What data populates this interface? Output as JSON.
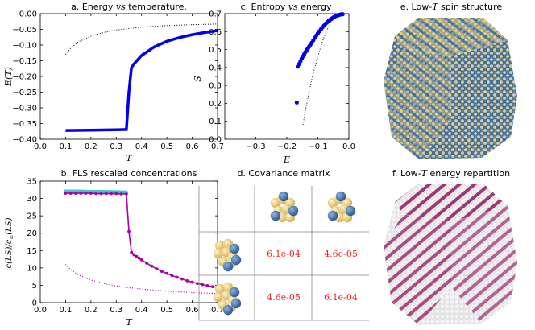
{
  "colors": {
    "energy_line": "#0000ee",
    "dotted": "#000000",
    "fls_main": "#aa00aa",
    "fls_cyan": "#33cccc",
    "cov_text": "#ee2222",
    "spin_blue": "#3f6fa8",
    "spin_yellow": "#e9cf7e",
    "repart_magenta": "#8b0a55",
    "repart_white": "#e4e4e4"
  },
  "chart_data": [
    {
      "id": "a",
      "type": "line",
      "title": "a. Energy vs temperature.",
      "title_parts": {
        "prefix": "a. Energy ",
        "vs": "vs",
        "suffix": " temperature."
      },
      "xlabel": "T",
      "ylabel": "E(T)",
      "xlim": [
        0.0,
        0.7
      ],
      "ylim": [
        -0.4,
        0.0
      ],
      "xticks": [
        "0.0",
        "0.1",
        "0.2",
        "0.3",
        "0.4",
        "0.5",
        "0.6",
        "0.7"
      ],
      "yticks": [
        "0.00",
        "−0.05",
        "−0.10",
        "−0.15",
        "−0.20",
        "−0.25",
        "−0.30",
        "−0.35",
        "−0.40"
      ],
      "grid": false,
      "series": [
        {
          "style": "solid-thick-blue",
          "x": [
            0.1,
            0.2,
            0.3,
            0.34,
            0.35,
            0.36,
            0.37,
            0.4,
            0.45,
            0.5,
            0.55,
            0.6,
            0.65,
            0.7
          ],
          "y": [
            -0.372,
            -0.371,
            -0.37,
            -0.369,
            -0.25,
            -0.172,
            -0.16,
            -0.133,
            -0.106,
            -0.088,
            -0.076,
            -0.067,
            -0.06,
            -0.054
          ]
        },
        {
          "style": "dotted-black",
          "x": [
            0.1,
            0.12,
            0.15,
            0.2,
            0.25,
            0.3,
            0.4,
            0.5,
            0.6,
            0.7
          ],
          "y": [
            -0.13,
            -0.11,
            -0.09,
            -0.072,
            -0.06,
            -0.052,
            -0.043,
            -0.038,
            -0.035,
            -0.033
          ]
        }
      ]
    },
    {
      "id": "c",
      "type": "scatter",
      "title": "c. Entropy vs energy",
      "title_parts": {
        "prefix": "c. Entropy ",
        "vs": "vs",
        "suffix": " energy"
      },
      "xlabel": "E",
      "ylabel": "S",
      "xlim": [
        -0.4,
        0.0
      ],
      "ylim": [
        0.0,
        0.7
      ],
      "xticks": [
        "−0.3",
        "−0.2",
        "−0.1",
        "0.0"
      ],
      "yticks": [
        "0.0",
        "0.1",
        "0.2",
        "0.3",
        "0.4",
        "0.5",
        "0.6",
        "0.7"
      ],
      "grid": false,
      "series": [
        {
          "style": "markers-blue",
          "x": [
            -0.168,
            -0.165,
            -0.16,
            -0.156,
            -0.152,
            -0.148,
            -0.144,
            -0.14,
            -0.136,
            -0.132,
            -0.128,
            -0.124,
            -0.12,
            -0.115,
            -0.11,
            -0.105,
            -0.1,
            -0.095,
            -0.09,
            -0.085,
            -0.08,
            -0.075,
            -0.07,
            -0.065,
            -0.06,
            -0.055,
            -0.05,
            -0.045,
            -0.04,
            -0.035,
            -0.03,
            -0.025,
            -0.02
          ],
          "y": [
            0.205,
            0.405,
            0.42,
            0.435,
            0.45,
            0.462,
            0.474,
            0.486,
            0.497,
            0.507,
            0.517,
            0.527,
            0.537,
            0.551,
            0.565,
            0.578,
            0.59,
            0.602,
            0.613,
            0.624,
            0.634,
            0.644,
            0.652,
            0.66,
            0.667,
            0.673,
            0.679,
            0.684,
            0.688,
            0.691,
            0.694,
            0.696,
            0.697
          ]
        },
        {
          "style": "dotted-black",
          "x": [
            -0.148,
            -0.14,
            -0.13,
            -0.12,
            -0.11,
            -0.1,
            -0.09,
            -0.08,
            -0.07,
            -0.06,
            -0.05,
            -0.04,
            -0.03
          ],
          "y": [
            0.08,
            0.16,
            0.25,
            0.33,
            0.4,
            0.46,
            0.52,
            0.57,
            0.61,
            0.645,
            0.67,
            0.687,
            0.695
          ]
        }
      ]
    },
    {
      "id": "b",
      "type": "line",
      "title": "b. FLS rescaled concentrations",
      "xlabel": "T",
      "ylabel": "c(LS)/c∞(LS)",
      "ylabel_parts": {
        "main": "c(LS)/c",
        "sub": "∞",
        "tail": "(LS)"
      },
      "xlim": [
        0.0,
        0.7
      ],
      "ylim": [
        0,
        35
      ],
      "xticks": [
        "0.0",
        "0.1",
        "0.2",
        "0.3",
        "0.4",
        "0.5",
        "0.6",
        "0.7"
      ],
      "yticks": [
        "0",
        "5",
        "10",
        "15",
        "20",
        "25",
        "30",
        "35"
      ],
      "grid": false,
      "series": [
        {
          "style": "cyan-upper",
          "x": [
            0.1,
            0.15,
            0.2,
            0.25,
            0.3,
            0.34
          ],
          "y": [
            32.1,
            32.1,
            32.0,
            32.0,
            31.9,
            31.8
          ]
        },
        {
          "style": "magenta-markers",
          "x": [
            0.1,
            0.12,
            0.14,
            0.16,
            0.18,
            0.2,
            0.22,
            0.24,
            0.26,
            0.28,
            0.3,
            0.32,
            0.34,
            0.35,
            0.36,
            0.37,
            0.38,
            0.39,
            0.4,
            0.42,
            0.44,
            0.46,
            0.48,
            0.5,
            0.52,
            0.54,
            0.56,
            0.58,
            0.6,
            0.62,
            0.64,
            0.66,
            0.68,
            0.7
          ],
          "y": [
            31.5,
            31.5,
            31.5,
            31.5,
            31.5,
            31.5,
            31.4,
            31.4,
            31.4,
            31.4,
            31.4,
            31.3,
            31.3,
            20.5,
            14.5,
            13.8,
            13.3,
            12.8,
            12.3,
            11.4,
            10.5,
            9.7,
            9.0,
            8.4,
            7.8,
            7.3,
            6.8,
            6.3,
            5.9,
            5.5,
            5.2,
            4.9,
            4.6,
            4.4
          ]
        },
        {
          "style": "dotted-magenta",
          "x": [
            0.1,
            0.12,
            0.15,
            0.2,
            0.25,
            0.3,
            0.35,
            0.4,
            0.5,
            0.6,
            0.7
          ],
          "y": [
            11.0,
            9.5,
            8.0,
            6.5,
            5.5,
            4.8,
            4.3,
            3.9,
            3.3,
            2.9,
            2.6
          ]
        }
      ]
    },
    {
      "id": "d",
      "type": "table",
      "title": "d. Covariance matrix",
      "rows": [
        [
          "6.1e-04",
          "4.6e-05"
        ],
        [
          "4.6e-05",
          "6.1e-04"
        ]
      ]
    }
  ],
  "panels": {
    "e": {
      "title": "e. Low-T spin structure",
      "title_parts": {
        "prefix": "e. Low-",
        "T": "T",
        "suffix": " spin structure"
      }
    },
    "f": {
      "title": "f. Low-T energy repartition",
      "title_parts": {
        "prefix": "f. Low-",
        "T": "T",
        "suffix": " energy repartition"
      }
    }
  }
}
